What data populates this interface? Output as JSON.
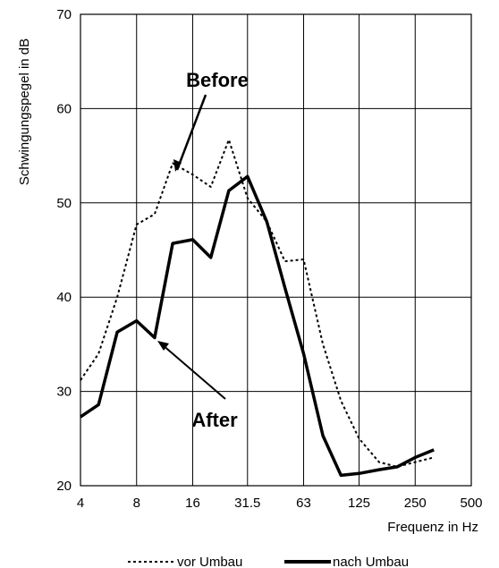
{
  "chart_data": {
    "type": "line",
    "x_scale": "log2",
    "xlim": [
      4,
      500
    ],
    "ylim": [
      20,
      70
    ],
    "x_ticks": [
      4,
      8,
      16,
      31.5,
      63,
      125,
      250,
      500
    ],
    "x_tick_labels": [
      "4",
      "8",
      "16",
      "31.5",
      "63",
      "125",
      "250",
      "500"
    ],
    "y_ticks": [
      20,
      30,
      40,
      50,
      60,
      70
    ],
    "y_tick_labels": [
      "20",
      "30",
      "40",
      "50",
      "60",
      "70"
    ],
    "xlabel": "Frequenz in Hz",
    "ylabel": "Schwingungspegel in dB",
    "grid": true,
    "legend_position": "bottom",
    "series": [
      {
        "name": "vor Umbau",
        "style": "dotted",
        "x": [
          4,
          5,
          6.3,
          8,
          10,
          12.5,
          16,
          20,
          25,
          31.5,
          40,
          50,
          63,
          80,
          100,
          125,
          160,
          200,
          250,
          315
        ],
        "y": [
          31.2,
          34.0,
          40.0,
          47.7,
          48.8,
          54.2,
          53.0,
          51.7,
          56.7,
          50.5,
          48.0,
          43.8,
          44.0,
          35.0,
          29.0,
          25.0,
          22.5,
          22.0,
          22.5,
          23.0
        ]
      },
      {
        "name": "nach Umbau",
        "style": "solid",
        "x": [
          4,
          5,
          6.3,
          8,
          10,
          12.5,
          16,
          20,
          25,
          31.5,
          40,
          50,
          63,
          80,
          100,
          125,
          160,
          200,
          250,
          315
        ],
        "y": [
          27.3,
          28.6,
          36.3,
          37.5,
          35.7,
          45.7,
          46.1,
          44.2,
          51.3,
          52.8,
          48.0,
          41.0,
          34.0,
          25.3,
          21.1,
          21.3,
          21.7,
          22.0,
          23.0,
          23.8
        ]
      }
    ],
    "annotations": [
      {
        "text": "Before",
        "target_x": 12.5,
        "target_y": 54.2
      },
      {
        "text": "After",
        "target_x": 10.5,
        "target_y": 35.7
      }
    ]
  }
}
